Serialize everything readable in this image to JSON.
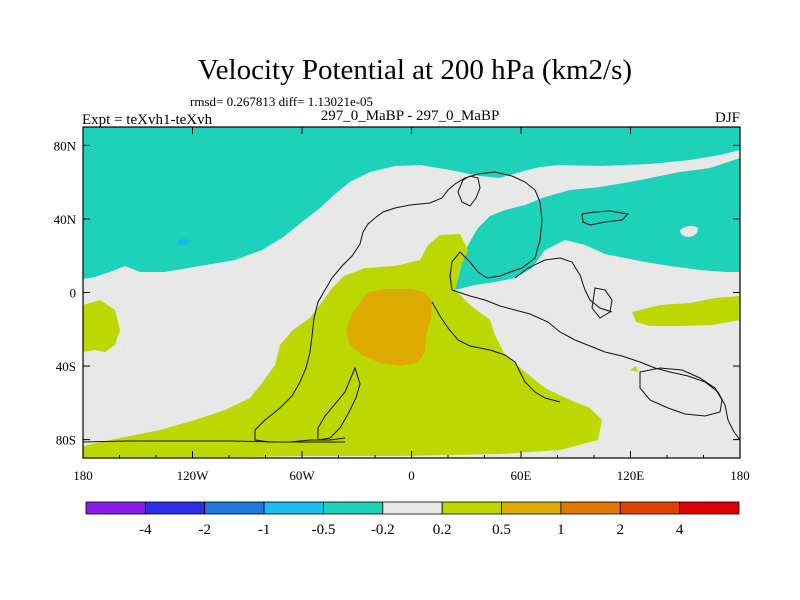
{
  "chart_data": {
    "type": "contour-map",
    "title": "Velocity Potential at 200 hPa (km2/s)",
    "stats_line": "rmsd= 0.267813 diff= 1.13021e-05",
    "left_label": "Expt = teXvh1-teXvh",
    "center_label": "297_0_MaBP - 297_0_MaBP",
    "right_label": "DJF",
    "x_axis": {
      "range": [
        -180,
        180
      ],
      "ticks": [
        {
          "value": -180,
          "label": "180"
        },
        {
          "value": -120,
          "label": "120W"
        },
        {
          "value": -60,
          "label": "60W"
        },
        {
          "value": 0,
          "label": "0"
        },
        {
          "value": 60,
          "label": "60E"
        },
        {
          "value": 120,
          "label": "120E"
        },
        {
          "value": 180,
          "label": "180"
        }
      ]
    },
    "y_axis": {
      "range": [
        -90,
        90
      ],
      "ticks": [
        {
          "value": 80,
          "label": "80N"
        },
        {
          "value": 40,
          "label": "40N"
        },
        {
          "value": 0,
          "label": "0"
        },
        {
          "value": -40,
          "label": "40S"
        },
        {
          "value": -80,
          "label": "80S"
        }
      ]
    },
    "colorbar": {
      "colors": [
        "#8a1ee6",
        "#2d2de6",
        "#1f78de",
        "#19bcec",
        "#1ed2b9",
        "#e8e8e8",
        "#bbd900",
        "#dcaa00",
        "#e07800",
        "#e04000",
        "#e00000"
      ],
      "labels": [
        "-4",
        "-2",
        "-1",
        "-0.5",
        "-0.2",
        "0.2",
        "0.5",
        "1",
        "2",
        "4"
      ]
    },
    "regions": [
      {
        "name": "high-latitude-north-band",
        "range": "-0.5 to -0.2",
        "color": "#1ed2b9"
      },
      {
        "name": "eastern-hemisphere-wedge",
        "range": "-0.5 to -0.2",
        "color": "#1ed2b9"
      },
      {
        "name": "background",
        "range": "-0.2 to 0.2",
        "color": "#e8e8e8"
      },
      {
        "name": "southern-tropics",
        "range": "0.2 to 0.5",
        "color": "#bbd900"
      },
      {
        "name": "central-maximum",
        "range": "0.5 to 1",
        "color": "#dcaa00"
      },
      {
        "name": "small-minimum-north-pacific",
        "range": "-1 to -0.5",
        "color": "#19bcec"
      }
    ]
  }
}
